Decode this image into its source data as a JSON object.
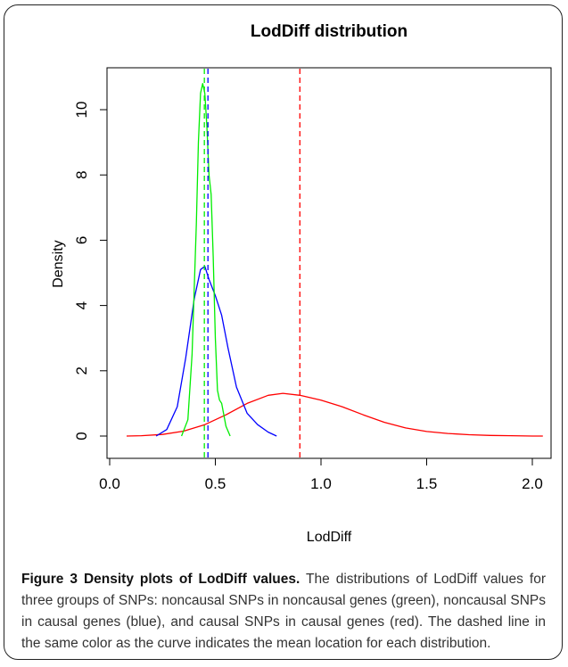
{
  "chart_data": {
    "type": "line",
    "title": "LodDiff distribution",
    "xlabel": "LodDiff",
    "ylabel": "Density",
    "xlim": [
      0.0,
      2.1
    ],
    "ylim": [
      0,
      11
    ],
    "xticks": [
      0.0,
      0.5,
      1.0,
      1.5,
      2.0
    ],
    "xtick_labels": [
      "0.0",
      "0.5",
      "1.0",
      "1.5",
      "2.0"
    ],
    "yticks": [
      0,
      2,
      4,
      6,
      8,
      10
    ],
    "ytick_labels": [
      "0",
      "2",
      "4",
      "6",
      "8",
      "10"
    ],
    "grid": false,
    "series": [
      {
        "color": "#ff0000",
        "x": [
          0.08,
          0.15,
          0.25,
          0.35,
          0.45,
          0.55,
          0.65,
          0.75,
          0.82,
          0.9,
          1.0,
          1.1,
          1.2,
          1.3,
          1.4,
          1.5,
          1.6,
          1.7,
          1.8,
          1.9,
          2.0,
          2.05
        ],
        "y": [
          0.0,
          0.01,
          0.05,
          0.15,
          0.35,
          0.65,
          1.0,
          1.25,
          1.31,
          1.25,
          1.1,
          0.9,
          0.65,
          0.42,
          0.25,
          0.14,
          0.08,
          0.04,
          0.02,
          0.01,
          0.0,
          0.0
        ],
        "mean": 0.9
      },
      {
        "color": "#0000ff",
        "x": [
          0.22,
          0.27,
          0.32,
          0.36,
          0.4,
          0.43,
          0.45,
          0.47,
          0.5,
          0.53,
          0.56,
          0.6,
          0.65,
          0.7,
          0.75,
          0.79
        ],
        "y": [
          0.0,
          0.2,
          0.9,
          2.4,
          4.2,
          5.1,
          5.2,
          4.8,
          4.3,
          3.7,
          2.7,
          1.5,
          0.7,
          0.35,
          0.12,
          0.0
        ],
        "mean": 0.465
      },
      {
        "color": "#00ee00",
        "x": [
          0.34,
          0.37,
          0.39,
          0.41,
          0.42,
          0.43,
          0.44,
          0.45,
          0.46,
          0.47,
          0.48,
          0.49,
          0.5,
          0.51,
          0.52,
          0.53,
          0.55,
          0.57
        ],
        "y": [
          0.0,
          0.5,
          2.5,
          6.5,
          9.0,
          10.5,
          10.8,
          10.5,
          9.5,
          8.0,
          7.4,
          5.5,
          3.0,
          1.4,
          1.1,
          1.0,
          0.3,
          0.0
        ],
        "mean": 0.448
      }
    ]
  },
  "caption": {
    "heading": "Figure 3 Density plots of LodDiff values.",
    "body": "The distributions of LodDiff values for three groups of SNPs: noncausal SNPs in noncausal genes (green), noncausal SNPs in causal genes (blue), and causal SNPs in causal genes (red). The dashed line in the same color as the curve indicates the mean location for each distribution."
  }
}
